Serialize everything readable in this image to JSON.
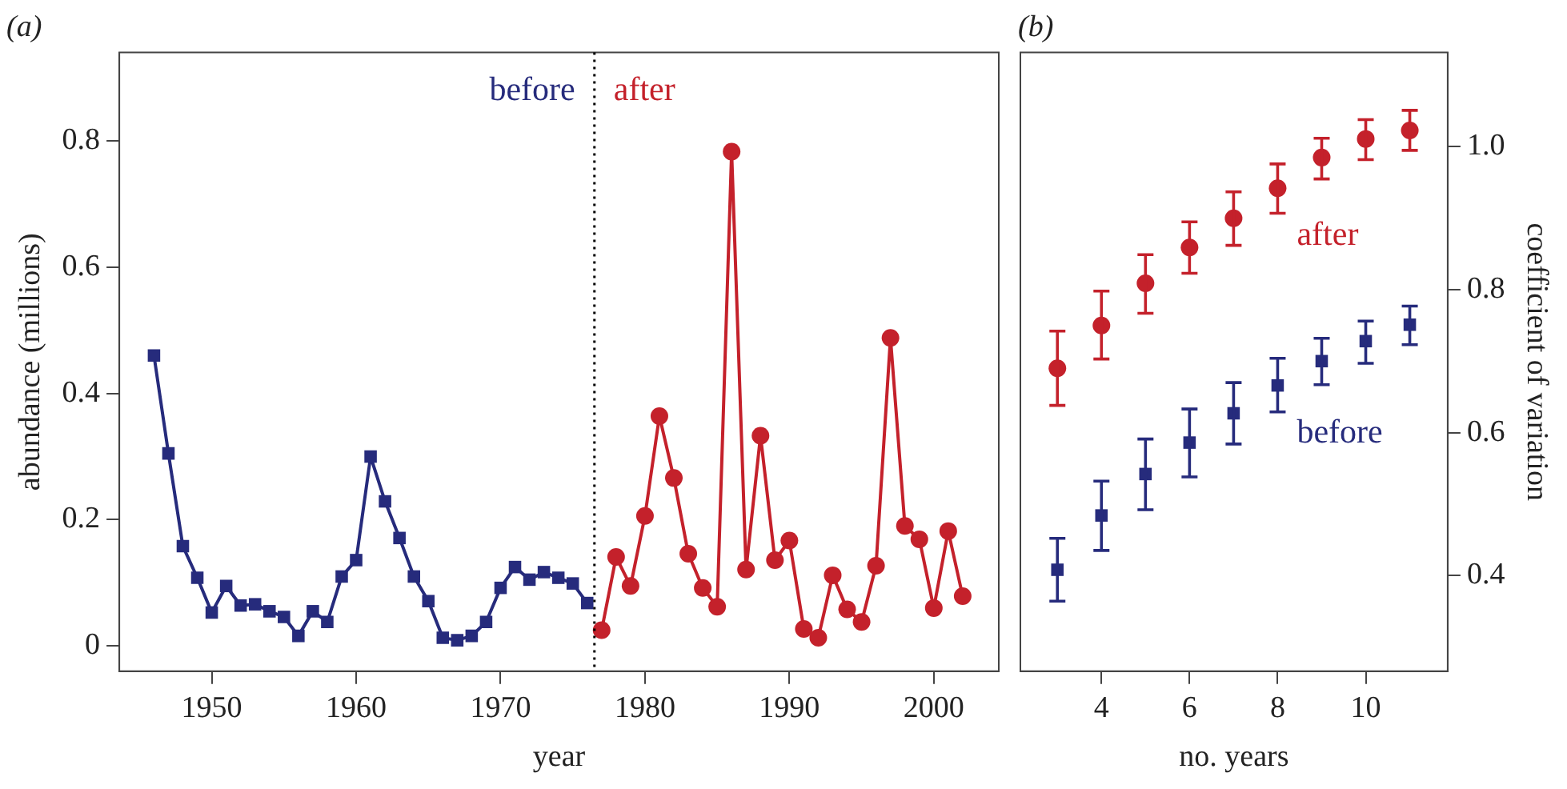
{
  "chart_data": [
    {
      "type": "line",
      "title": "(a)",
      "xlabel": "year",
      "ylabel": "abundance (millions)",
      "xlim": [
        1943.6,
        2004.5
      ],
      "ylim": [
        -0.04,
        0.94
      ],
      "xticks": [
        1950,
        1960,
        1970,
        1980,
        1990,
        2000
      ],
      "yticks": [
        0,
        0.2,
        0.4,
        0.6,
        0.8
      ],
      "ref_lines": [
        {
          "axis": "x",
          "value": 1976.5,
          "line_style": "dotted",
          "color": "#000000"
        }
      ],
      "series": [
        {
          "name": "before",
          "color": "#262b7c",
          "marker": "square",
          "x": [
            1946,
            1947,
            1948,
            1949,
            1950,
            1951,
            1952,
            1953,
            1954,
            1955,
            1956,
            1957,
            1958,
            1959,
            1960,
            1961,
            1962,
            1963,
            1964,
            1965,
            1966,
            1967,
            1968,
            1969,
            1970,
            1971,
            1972,
            1973,
            1974,
            1975,
            1976
          ],
          "values": [
            0.46,
            0.305,
            0.158,
            0.108,
            0.053,
            0.095,
            0.064,
            0.066,
            0.055,
            0.046,
            0.016,
            0.055,
            0.038,
            0.11,
            0.136,
            0.3,
            0.229,
            0.171,
            0.11,
            0.071,
            0.013,
            0.009,
            0.016,
            0.038,
            0.092,
            0.125,
            0.105,
            0.117,
            0.108,
            0.099,
            0.068
          ]
        },
        {
          "name": "after",
          "color": "#c4212b",
          "marker": "circle",
          "x": [
            1977,
            1978,
            1979,
            1980,
            1981,
            1982,
            1983,
            1984,
            1985,
            1986,
            1987,
            1988,
            1989,
            1990,
            1991,
            1992,
            1993,
            1994,
            1995,
            1996,
            1997,
            1998,
            1999,
            2000,
            2001,
            2002
          ],
          "values": [
            0.025,
            0.141,
            0.095,
            0.206,
            0.364,
            0.266,
            0.146,
            0.092,
            0.062,
            0.783,
            0.121,
            0.333,
            0.136,
            0.167,
            0.027,
            0.013,
            0.112,
            0.058,
            0.038,
            0.127,
            0.488,
            0.19,
            0.169,
            0.06,
            0.182,
            0.079
          ]
        }
      ]
    },
    {
      "type": "scatter",
      "title": "(b)",
      "xlabel": "no. years",
      "y2label": "coefficient of variation",
      "xlim": [
        2.16,
        11.86
      ],
      "y2lim": [
        0.266,
        1.132
      ],
      "xticks": [
        4,
        6,
        8,
        10
      ],
      "y2ticks": [
        0.4,
        0.6,
        0.8,
        {
          "value": 1,
          "label": "1.0"
        }
      ],
      "x": [
        3,
        4,
        5,
        6,
        7,
        8,
        9,
        10,
        11
      ],
      "series": [
        {
          "name": "after",
          "color": "#c4212b",
          "marker": "circle",
          "axis": "y2",
          "values": [
            0.69,
            0.75,
            0.809,
            0.859,
            0.9,
            0.942,
            0.985,
            1.011,
            1.023
          ],
          "errors": [
            [
              0.638,
              0.742
            ],
            [
              0.703,
              0.798
            ],
            [
              0.767,
              0.849
            ],
            [
              0.823,
              0.895
            ],
            [
              0.862,
              0.937
            ],
            [
              0.907,
              0.976
            ],
            [
              0.955,
              1.012
            ],
            [
              0.982,
              1.038
            ],
            [
              0.995,
              1.051
            ]
          ]
        },
        {
          "name": "before",
          "color": "#262b7c",
          "marker": "square",
          "axis": "y2",
          "values": [
            0.408,
            0.484,
            0.542,
            0.586,
            0.627,
            0.666,
            0.7,
            0.728,
            0.751
          ],
          "errors": [
            [
              0.364,
              0.452
            ],
            [
              0.435,
              0.532
            ],
            [
              0.492,
              0.591
            ],
            [
              0.538,
              0.633
            ],
            [
              0.584,
              0.67
            ],
            [
              0.629,
              0.704
            ],
            [
              0.667,
              0.732
            ],
            [
              0.697,
              0.756
            ],
            [
              0.723,
              0.777
            ]
          ]
        }
      ]
    }
  ]
}
